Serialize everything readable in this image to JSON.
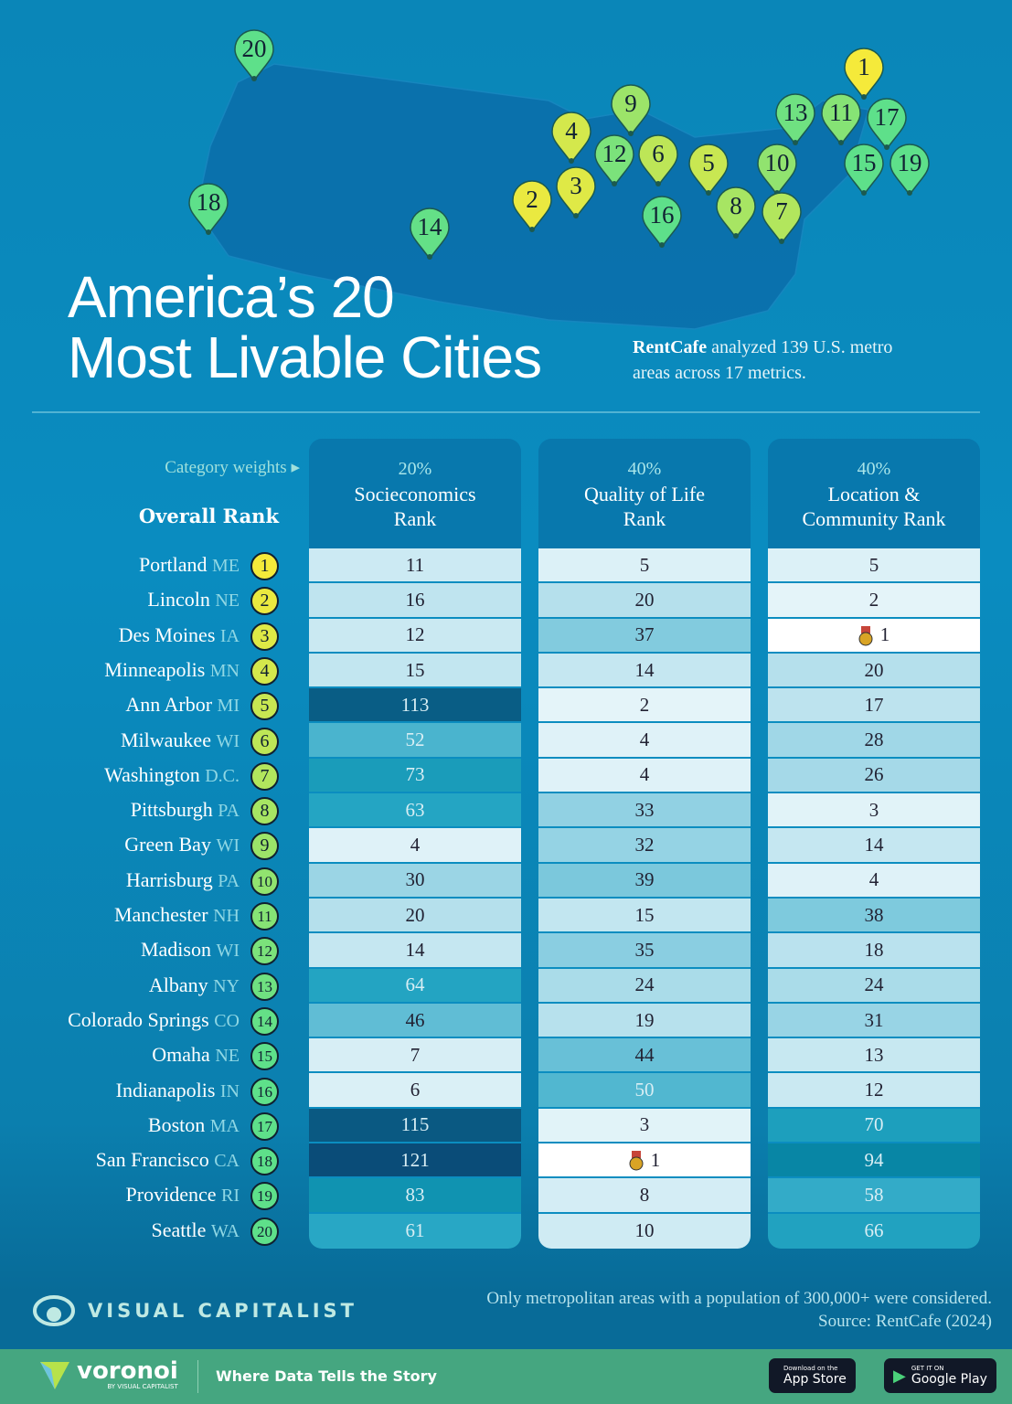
{
  "title_line1": "America’s 20",
  "title_line2": "Most Livable Cities",
  "subtitle_brand": "RentCafe",
  "subtitle_rest": " analyzed 139 U.S. metro areas across 17 metrics.",
  "category_weights_label": "Category weights",
  "overall_rank_label": "Overall Rank",
  "columns": [
    {
      "weight": "20%",
      "name_line1": "Socieconomics",
      "name_line2": "Rank"
    },
    {
      "weight": "40%",
      "name_line1": "Quality of Life",
      "name_line2": "Rank"
    },
    {
      "weight": "40%",
      "name_line1": "Location &",
      "name_line2": "Community Rank"
    }
  ],
  "chart_data": {
    "type": "table",
    "title": "America’s 20 Most Livable Cities",
    "columns": [
      "Overall Rank",
      "Socieconomics Rank",
      "Quality of Life Rank",
      "Location & Community Rank"
    ],
    "rows": [
      {
        "rank": "1",
        "city": "Portland",
        "state": "ME",
        "values": [
          11,
          5,
          5
        ]
      },
      {
        "rank": "2",
        "city": "Lincoln",
        "state": "NE",
        "values": [
          16,
          20,
          2
        ]
      },
      {
        "rank": "3",
        "city": "Des Moines",
        "state": "IA",
        "values": [
          12,
          37,
          1
        ]
      },
      {
        "rank": "4",
        "city": "Minneapolis",
        "state": "MN",
        "values": [
          15,
          14,
          20
        ]
      },
      {
        "rank": "5",
        "city": "Ann Arbor",
        "state": "MI",
        "values": [
          113,
          2,
          17
        ]
      },
      {
        "rank": "6",
        "city": "Milwaukee",
        "state": "WI",
        "values": [
          52,
          4,
          28
        ]
      },
      {
        "rank": "7",
        "city": "Washington",
        "state": "D.C.",
        "values": [
          73,
          4,
          26
        ]
      },
      {
        "rank": "8",
        "city": "Pittsburgh",
        "state": "PA",
        "values": [
          63,
          33,
          3
        ]
      },
      {
        "rank": "9",
        "city": "Green Bay",
        "state": "WI",
        "values": [
          4,
          32,
          14
        ]
      },
      {
        "rank": "10",
        "city": "Harrisburg",
        "state": "PA",
        "values": [
          30,
          39,
          4
        ]
      },
      {
        "rank": "11",
        "city": "Manchester",
        "state": "NH",
        "values": [
          20,
          15,
          38
        ]
      },
      {
        "rank": "12",
        "city": "Madison",
        "state": "WI",
        "values": [
          14,
          35,
          18
        ]
      },
      {
        "rank": "13",
        "city": "Albany",
        "state": "NY",
        "values": [
          64,
          24,
          24
        ]
      },
      {
        "rank": "14",
        "city": "Colorado Springs",
        "state": "CO",
        "values": [
          46,
          19,
          31
        ]
      },
      {
        "rank": "15",
        "city": "Omaha",
        "state": "NE",
        "values": [
          7,
          44,
          13
        ]
      },
      {
        "rank": "16",
        "city": "Indianapolis",
        "state": "IN",
        "values": [
          6,
          50,
          12
        ]
      },
      {
        "rank": "17",
        "city": "Boston",
        "state": "MA",
        "values": [
          115,
          3,
          70
        ]
      },
      {
        "rank": "18",
        "city": "San Francisco",
        "state": "CA",
        "values": [
          121,
          1,
          94
        ]
      },
      {
        "rank": "19",
        "city": "Providence",
        "state": "RI",
        "values": [
          83,
          8,
          58
        ]
      },
      {
        "rank": "20",
        "city": "Seattle",
        "state": "WA",
        "values": [
          61,
          10,
          66
        ]
      }
    ],
    "highlight": "Rank 1 in a category marked with a medal icon",
    "colors": {
      "low": "#e4f4f9",
      "high": "#0a4c78",
      "top": "#ffffff",
      "badge_top": "#f5ea3a",
      "badge_bottom": "#5ee08a"
    }
  },
  "footnote": "Only metropolitan areas with a population of 300,000+ were considered.",
  "source": "Source: RentCafe (2024)",
  "brand": "VISUAL CAPITALIST",
  "footer": {
    "voronoi": "voronoi",
    "voronoi_sub": "BY VISUAL CAPITALIST",
    "tagline": "Where Data Tells the Story",
    "app_store_small": "Download on the",
    "app_store": "App Store",
    "google_small": "GET IT ON",
    "google": "Google Play"
  }
}
